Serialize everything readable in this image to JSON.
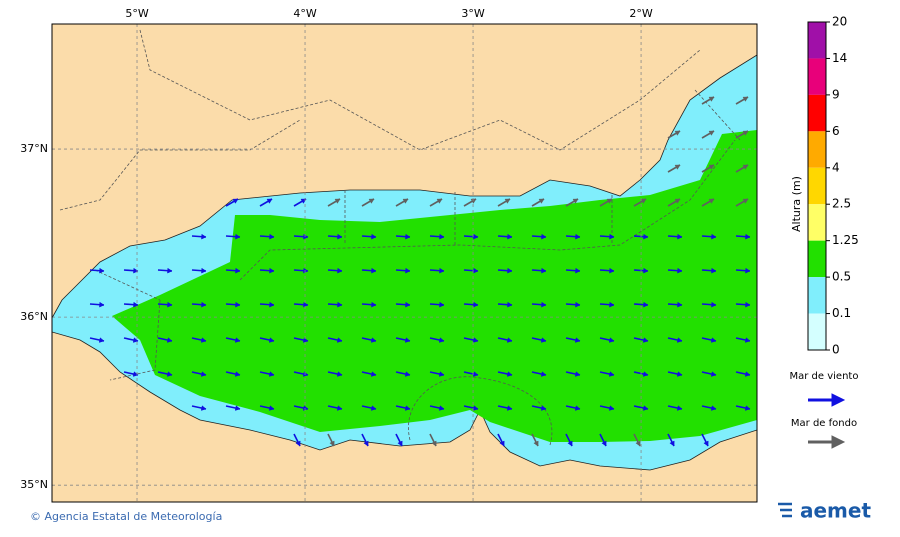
{
  "map": {
    "xlim": [
      -5.506,
      -1.31
    ],
    "ylim": [
      34.9,
      37.744
    ],
    "xticks": [
      {
        "value": -5,
        "label": "5°W"
      },
      {
        "value": -4,
        "label": "4°W"
      },
      {
        "value": -3,
        "label": "3°W"
      },
      {
        "value": -2,
        "label": "2°W"
      }
    ],
    "yticks": [
      {
        "value": 37,
        "label": "37°N"
      },
      {
        "value": 36,
        "label": "36°N"
      },
      {
        "value": 35,
        "label": "35°N"
      }
    ],
    "land_color": "#fbdcaa",
    "colorbar": {
      "title": "Altura (m)",
      "levels": [
        20,
        14,
        9,
        6,
        4,
        2.5,
        1.25,
        0.5,
        0.1,
        0
      ],
      "colors": [
        "#a010a8",
        "#e8007a",
        "#ff0000",
        "#ffaa00",
        "#ffd700",
        "#ffff66",
        "#22e000",
        "#80eefc",
        "#d4ffff"
      ]
    },
    "legend": [
      {
        "name": "Mar de viento",
        "color": "#1010e0"
      },
      {
        "name": "Mar de fondo",
        "color": "#606060"
      }
    ],
    "credit": "© Agencia Estatal de Meteorología",
    "logo": "aemet"
  }
}
